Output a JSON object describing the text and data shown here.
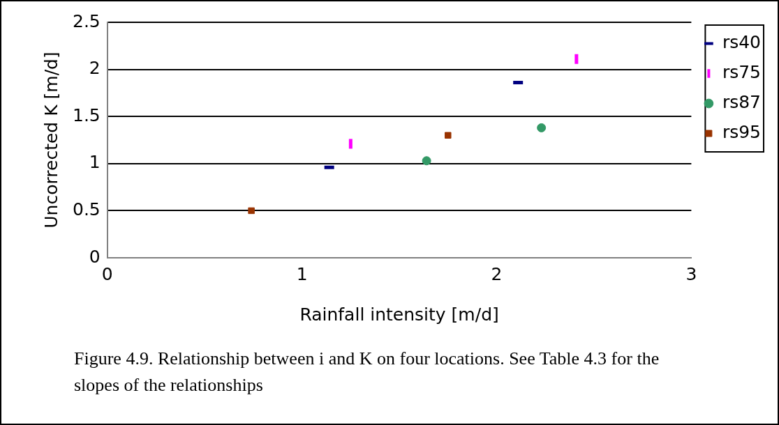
{
  "chart_data": {
    "type": "scatter",
    "xlabel": "Rainfall intensity [m/d]",
    "ylabel": "Uncorrected K [m/d]",
    "xlim": [
      0,
      3
    ],
    "xticks": [
      0,
      1,
      2,
      3
    ],
    "ylim": [
      0,
      2.5
    ],
    "yticks": [
      0,
      0.5,
      1,
      1.5,
      2,
      2.5
    ],
    "grid": "y",
    "legend": "right",
    "series": [
      {
        "name": "rs40",
        "color": "#000080",
        "x": [
          1.14,
          2.11
        ],
        "values": [
          0.96,
          1.86
        ]
      },
      {
        "name": "rs75",
        "color": "#ff00ff",
        "x": [
          1.25,
          2.41
        ],
        "values": [
          1.21,
          2.11
        ]
      },
      {
        "name": "rs87",
        "color": "#339966",
        "marker": "circle",
        "x": [
          1.64,
          2.23
        ],
        "values": [
          1.03,
          1.38
        ]
      },
      {
        "name": "rs95",
        "color": "#993300",
        "marker": "square",
        "x": [
          0.74,
          1.75
        ],
        "values": [
          0.5,
          1.3
        ]
      }
    ],
    "annotations": [
      "Figure 4.9. Relationship between i and K on four locations. See Table 4.3 for the slopes of the relationships"
    ]
  }
}
